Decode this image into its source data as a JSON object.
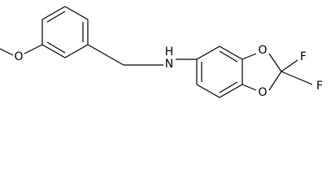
{
  "atoms": {
    "methoxy_oxygen": "O",
    "amine_nitrogen": "N",
    "amine_hydrogen": "H",
    "dioxole_oxygen_top": "O",
    "dioxole_oxygen_bottom": "O",
    "fluorine_top": "F",
    "fluorine_bottom": "F"
  }
}
